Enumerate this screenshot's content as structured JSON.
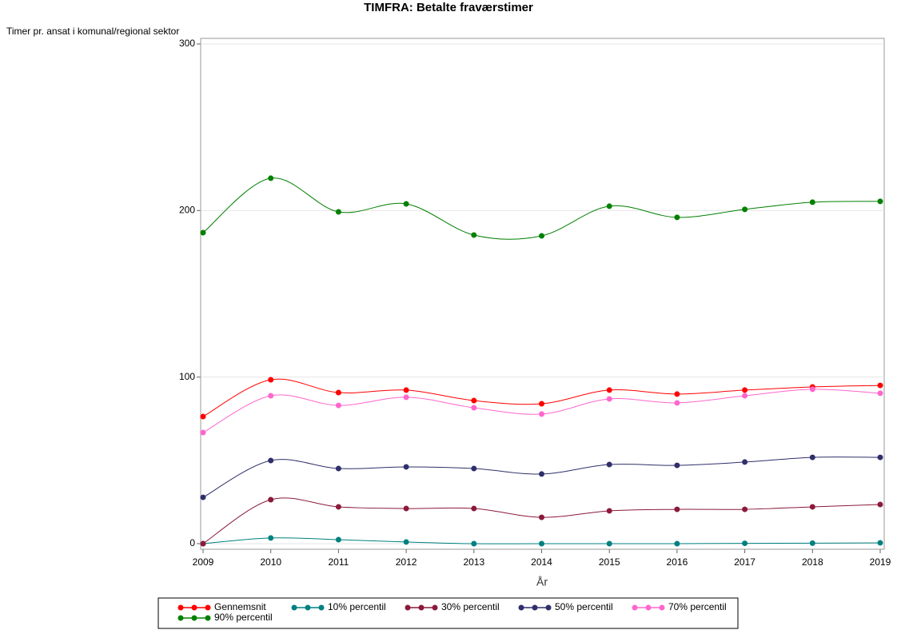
{
  "chart_data": {
    "type": "line",
    "title": "TIMFRA: Betalte fraværstimer",
    "y_label": "Timer pr. ansat i komunal/regional sektor",
    "x_label": "År",
    "x": [
      2009,
      2010,
      2011,
      2012,
      2013,
      2014,
      2015,
      2016,
      2017,
      2018,
      2019
    ],
    "xlim": [
      2009,
      2019
    ],
    "xticks": [
      2009,
      2010,
      2011,
      2012,
      2013,
      2014,
      2015,
      2016,
      2017,
      2018,
      2019
    ],
    "ylim": [
      0,
      300
    ],
    "yticks": [
      0,
      100,
      200,
      300
    ],
    "grid": true,
    "series": [
      {
        "name": "Gennemsnit",
        "color": "#ff0000",
        "values": [
          76.3,
          98.4,
          90.7,
          92.2,
          85.9,
          84,
          92.2,
          89.8,
          92.2,
          94.1,
          95
        ]
      },
      {
        "name": "10% percentil",
        "color": "#008080",
        "values": [
          0,
          3.4,
          2.4,
          1,
          0,
          0,
          0,
          0,
          0.2,
          0.3,
          0.5
        ]
      },
      {
        "name": "30% percentil",
        "color": "#8b1a3a",
        "values": [
          0,
          26.4,
          22.1,
          21.1,
          21.1,
          15.8,
          19.7,
          20.6,
          20.6,
          22.1,
          23.5
        ]
      },
      {
        "name": "50% percentil",
        "color": "#2f2f6b",
        "values": [
          27.8,
          49.9,
          45.1,
          46.1,
          45.1,
          41.8,
          47.5,
          47,
          49,
          51.8,
          51.8
        ]
      },
      {
        "name": "70% percentil",
        "color": "#ff66cc",
        "values": [
          66.7,
          88.8,
          83,
          87.9,
          81.6,
          77.8,
          86.9,
          84.5,
          88.8,
          92.7,
          90.3
        ]
      },
      {
        "name": "90% percentil",
        "color": "#008000",
        "values": [
          186.7,
          219.4,
          199.2,
          204,
          185.3,
          184.8,
          202.6,
          195.9,
          200.7,
          205,
          205.5
        ]
      }
    ]
  }
}
